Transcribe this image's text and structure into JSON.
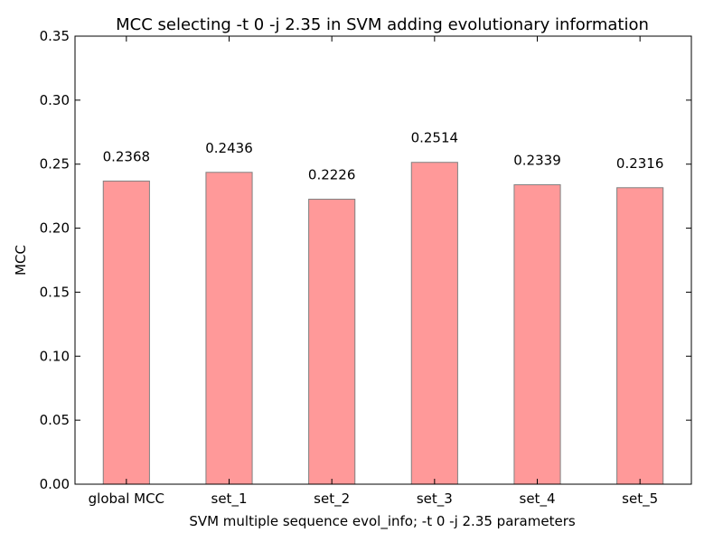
{
  "chart_data": {
    "type": "bar",
    "title": "MCC selecting -t 0 -j 2.35 in SVM adding evolutionary information",
    "xlabel": "SVM multiple sequence evol_info; -t 0 -j 2.35 parameters",
    "ylabel": "MCC",
    "categories": [
      "global MCC",
      "set_1",
      "set_2",
      "set_3",
      "set_4",
      "set_5"
    ],
    "values": [
      0.2368,
      0.2436,
      0.2226,
      0.2514,
      0.2339,
      0.2316
    ],
    "data_labels": [
      "0.2368",
      "0.2436",
      "0.2226",
      "0.2514",
      "0.2339",
      "0.2316"
    ],
    "ylim": [
      0,
      0.35
    ],
    "yticks": [
      0.0,
      0.05,
      0.1,
      0.15,
      0.2,
      0.25,
      0.3,
      0.35
    ],
    "ytick_labels": [
      "0.00",
      "0.05",
      "0.10",
      "0.15",
      "0.20",
      "0.25",
      "0.30",
      "0.35"
    ],
    "grid": false,
    "bar_color": "#ff9999",
    "bar_edge_color": "#808080"
  }
}
